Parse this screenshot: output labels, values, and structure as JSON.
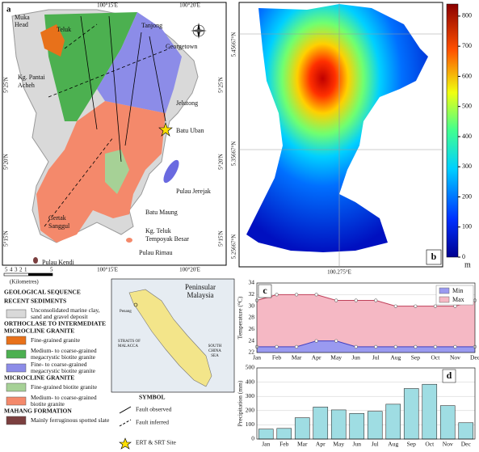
{
  "map_a": {
    "label": "a",
    "lon_top": [
      "100°15'E",
      "100°20'E"
    ],
    "lon_bottom": [
      "100°15'E",
      "100°20'E"
    ],
    "lat_left": [
      "5°25'N",
      "5°20'N",
      "5°15'N"
    ],
    "lat_right": [
      "5°25'N",
      "5°20'N",
      "5°15'N"
    ],
    "places": [
      "Muka",
      "Head",
      "Teluk",
      "Tanjong",
      "Georgetown",
      "Kg. Pantai",
      "Acheh",
      "Jelutong",
      "Batu Uban",
      "Pulau Jerejak",
      "Gertak",
      "Sanggul",
      "Batu Maung",
      "Kg. Teluk",
      "Tempoyak Besar",
      "Pulau Rimau",
      "Pulau Kendi"
    ],
    "scale_labels": [
      "5",
      "4",
      "3",
      "2",
      "1",
      "5"
    ],
    "scale_unit": "(Kilometres)"
  },
  "legend": {
    "title": "GEOLOGICAL SEQUENCE",
    "groups": [
      {
        "heading": [
          "RECENT SEDIMENTS"
        ],
        "items": [
          {
            "label": [
              "Unconsolidated marine clay,",
              "sand and gravel deposit"
            ],
            "color": "#d9d9d9"
          }
        ]
      },
      {
        "heading": [
          "ORTHOCLASE TO INTERMEDIATE",
          "MICROCLINE GRANITE"
        ],
        "items": [
          {
            "label": [
              "Fine-grained granite"
            ],
            "color": "#e8711a"
          },
          {
            "label": [
              "Medium- to coarse-grained",
              "megacrystic biotite granite"
            ],
            "color": "#4cb050"
          },
          {
            "label": [
              "Fine- to coarse-grained",
              "megacrystic biotite granite"
            ],
            "color": "#8c8ce8"
          }
        ]
      },
      {
        "heading": [
          "MICROCLINE GRANITE"
        ],
        "items": [
          {
            "label": [
              "Fine-grained biotite granite"
            ],
            "color": "#a6d196"
          },
          {
            "label": [
              "Medium- to coarse-grained",
              "biotite granite"
            ],
            "color": "#f4896b"
          }
        ]
      },
      {
        "heading": [
          "MAHANG FORMATION"
        ],
        "items": [
          {
            "label": [
              "Mainly ferruginous spotted slate"
            ],
            "color": "#7b3f3f"
          }
        ]
      }
    ]
  },
  "symbols": {
    "title": "SYMBOL",
    "items": [
      "Fault observed",
      "Fault inferred",
      "ERT & SRT Site"
    ]
  },
  "inset": {
    "title": [
      "Peninsular",
      "Malaysia"
    ],
    "penang": "Penang",
    "strait": [
      "STRAITS OF",
      "MALACCA"
    ],
    "sea": [
      "SOUTH",
      "CHINA",
      "SEA"
    ]
  },
  "map_b": {
    "label": "b",
    "lat_labels": [
      "5.45667°N",
      "5.35667°N",
      "5.25667°N"
    ],
    "lon_label": "100.275°E",
    "colorbar": {
      "lim": [
        0,
        840
      ],
      "ticks": [
        0,
        100,
        200,
        300,
        400,
        500,
        600,
        700,
        800
      ],
      "unit": "m"
    }
  },
  "chart_data": [
    {
      "type": "area",
      "label": "c",
      "y_label": "Temperature (°C)",
      "categories": [
        "Jan",
        "Feb",
        "Mar",
        "Apr",
        "May",
        "Jun",
        "Jul",
        "Aug",
        "Sep",
        "Oct",
        "Nov",
        "Dec"
      ],
      "series": [
        {
          "name": "Min",
          "color": "#9a9af0",
          "values": [
            23,
            23,
            23,
            24,
            24,
            23,
            23,
            23,
            23,
            23,
            23,
            23
          ]
        },
        {
          "name": "Max",
          "color": "#f5b8c4",
          "values": [
            31,
            32,
            32,
            32,
            31,
            31,
            31,
            30,
            30,
            30,
            30,
            31
          ]
        }
      ],
      "ylim": [
        22,
        34
      ],
      "yticks": [
        22,
        24,
        26,
        28,
        30,
        32,
        34
      ],
      "grid": true,
      "legend": "upper right"
    },
    {
      "type": "bar",
      "label": "d",
      "y_label": "Precipitation (mm)",
      "categories": [
        "Jan",
        "Feb",
        "Mar",
        "Apr",
        "May",
        "Jun",
        "Jul",
        "Aug",
        "Sep",
        "Oct",
        "Nov",
        "Dec"
      ],
      "values": [
        70,
        75,
        150,
        225,
        205,
        180,
        195,
        245,
        355,
        385,
        235,
        115
      ],
      "color": "#9fdde3",
      "ylim": [
        0,
        500
      ],
      "yticks": [
        0,
        100,
        200,
        300,
        400,
        500
      ],
      "grid": true
    }
  ]
}
